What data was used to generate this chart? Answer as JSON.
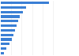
{
  "values": [
    17000,
    9000,
    7800,
    6800,
    6000,
    5500,
    5000,
    4500,
    3800,
    3000,
    2000,
    1200
  ],
  "bar_color": "#3a7fd5",
  "background_color": "#ffffff",
  "grid_color": "#e8e8e8",
  "bar_height": 0.55,
  "xlim": [
    0,
    22000
  ]
}
